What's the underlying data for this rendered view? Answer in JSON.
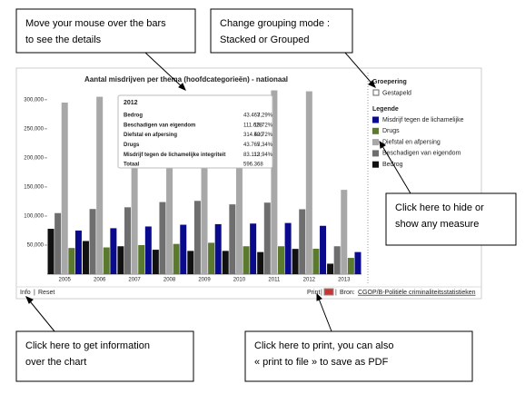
{
  "chart_data": {
    "type": "bar",
    "title": "Aantal misdrijven per thema (hoofdcategorieën) - nationaal",
    "categories": [
      "2005",
      "2006",
      "2007",
      "2008",
      "2009",
      "2010",
      "2011",
      "2012",
      "2013"
    ],
    "series": [
      {
        "name": "Misdrijf tegen de lichamelijke",
        "color": "#0a0a8c",
        "values": [
          75000,
          79000,
          82000,
          85000,
          86000,
          87000,
          88000,
          83112,
          38000
        ]
      },
      {
        "name": "Drugs",
        "color": "#5b7a2e",
        "values": [
          45000,
          46000,
          50000,
          52000,
          54000,
          48000,
          48000,
          43765,
          28000
        ]
      },
      {
        "name": "Diefstal en afpersing",
        "color": "#a8a8a8",
        "values": [
          295000,
          305000,
          306000,
          308000,
          305000,
          305000,
          316000,
          314400,
          145000
        ]
      },
      {
        "name": "Beschadigen van eigendom",
        "color": "#6e6e6e",
        "values": [
          105000,
          112000,
          115000,
          124000,
          126000,
          120000,
          123000,
          111628,
          48000
        ]
      },
      {
        "name": "Bedrog",
        "color": "#111111",
        "values": [
          78000,
          57000,
          48000,
          42000,
          40000,
          40000,
          38000,
          43463,
          18000
        ]
      }
    ],
    "ylim": [
      0,
      320000
    ],
    "yticks": [
      {
        "value": 50000,
        "label": "50,000"
      },
      {
        "value": 100000,
        "label": "100,000"
      },
      {
        "value": 150000,
        "label": "150,000"
      },
      {
        "value": 200000,
        "label": "200,000"
      },
      {
        "value": 250000,
        "label": "250,000"
      },
      {
        "value": 300000,
        "label": "300,000"
      }
    ],
    "grid": false
  },
  "tooltip": {
    "title": "2012",
    "rows": [
      [
        "Bedrog",
        "43.463",
        "7,29%"
      ],
      [
        "Beschadigen van eigendom",
        "111.628",
        "18,72%"
      ],
      [
        "Diefstal en afpersing",
        "314.400",
        "52,72%"
      ],
      [
        "Drugs",
        "43.765",
        "7,34%"
      ],
      [
        "Misdrijf tegen de lichamelijke integriteit",
        "83.112",
        "13,94%"
      ]
    ],
    "total": [
      "Totaal",
      "596.368"
    ]
  },
  "panel": {
    "grouping_title": "Groepering",
    "stacked": "Gestapeld",
    "legend_title": "Legende"
  },
  "footer": {
    "info": "Info",
    "reset": "Reset",
    "separator": "|",
    "print": "Print",
    "source_label": "Bron:",
    "source_link": "CGOP/B-Politiële criminaliteitsstatistieken"
  },
  "callouts": [
    [
      "Move your mouse over the bars",
      "to see the details"
    ],
    [
      "Change grouping mode :",
      "Stacked or Grouped"
    ],
    [
      "Click here to hide or",
      "show any measure"
    ],
    [
      "Click here to get information",
      "over the chart"
    ],
    [
      "Click here to print, you can also",
      "« print to file » to save as PDF"
    ]
  ]
}
